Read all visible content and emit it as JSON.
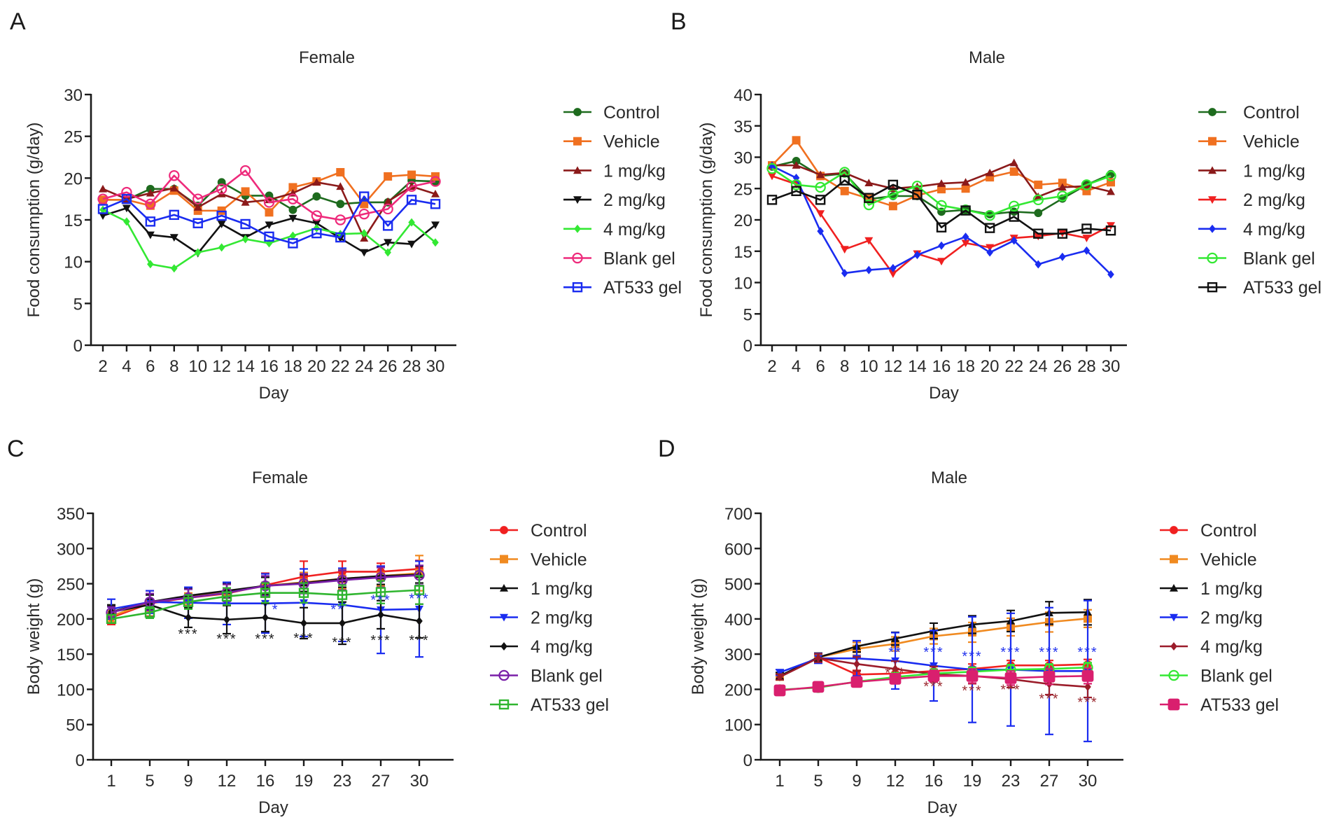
{
  "chart_data": [
    {
      "panel": "A",
      "type": "line",
      "title": "Female",
      "xlabel": "Day",
      "ylabel": "Food consumption (g/day)",
      "ylim": [
        0,
        30
      ],
      "yticks": [
        0,
        5,
        10,
        15,
        20,
        25,
        30
      ],
      "x": [
        2,
        4,
        6,
        8,
        10,
        12,
        14,
        16,
        18,
        20,
        22,
        24,
        26,
        28,
        30
      ],
      "grid": false,
      "legend": "right",
      "series": [
        {
          "name": "Control",
          "color": "#1e6b1e",
          "marker": "circle-filled",
          "values": [
            17.4,
            17.4,
            18.7,
            18.7,
            16.7,
            19.5,
            17.9,
            17.9,
            16.2,
            17.8,
            16.9,
            17.1,
            17.1,
            19.7,
            19.6
          ]
        },
        {
          "name": "Vehicle",
          "color": "#f07020",
          "marker": "square-filled",
          "values": [
            17.4,
            17.4,
            16.7,
            18.5,
            16.1,
            16.1,
            18.4,
            15.9,
            18.9,
            19.6,
            20.7,
            16.9,
            20.2,
            20.4,
            20.2
          ]
        },
        {
          "name": "1 mg/kg",
          "color": "#8b1a1a",
          "marker": "triangle-up",
          "values": [
            18.7,
            17.5,
            18.2,
            18.8,
            16.5,
            18.1,
            17.1,
            17.4,
            18.2,
            19.5,
            19.0,
            12.8,
            17.2,
            19.0,
            18.1
          ]
        },
        {
          "name": "2 mg/kg",
          "color": "#111111",
          "marker": "triangle-down",
          "values": [
            15.5,
            16.4,
            13.2,
            12.9,
            11.0,
            14.5,
            12.9,
            14.4,
            15.2,
            14.6,
            12.8,
            11.1,
            12.3,
            12.1,
            14.4
          ]
        },
        {
          "name": "4 mg/kg",
          "color": "#33e833",
          "marker": "diamond-filled",
          "values": [
            16.2,
            14.8,
            9.7,
            9.2,
            11.1,
            11.7,
            12.7,
            12.2,
            13.1,
            14.0,
            13.3,
            13.4,
            11.1,
            14.7,
            12.3
          ]
        },
        {
          "name": "Blank gel",
          "color": "#ee2a7b",
          "marker": "circle-open",
          "values": [
            17.5,
            18.3,
            16.9,
            20.3,
            17.5,
            18.7,
            20.9,
            17.1,
            17.5,
            15.5,
            15.0,
            15.7,
            16.3,
            19.0,
            19.6
          ]
        },
        {
          "name": "AT533 gel",
          "color": "#1a2cf0",
          "marker": "square-open",
          "values": [
            16.3,
            17.5,
            14.8,
            15.6,
            14.6,
            15.5,
            14.5,
            13.0,
            12.2,
            13.4,
            12.9,
            17.8,
            14.3,
            17.4,
            16.9
          ]
        }
      ],
      "annotations": []
    },
    {
      "panel": "B",
      "type": "line",
      "title": "Male",
      "xlabel": "Day",
      "ylabel": "Food consumption (g/day)",
      "ylim": [
        0,
        40
      ],
      "yticks": [
        0,
        5,
        10,
        15,
        20,
        25,
        30,
        35,
        40
      ],
      "x": [
        2,
        4,
        6,
        8,
        10,
        12,
        14,
        16,
        18,
        20,
        22,
        24,
        26,
        28,
        30
      ],
      "grid": false,
      "legend": "right",
      "series": [
        {
          "name": "Control",
          "color": "#1e6b1e",
          "marker": "circle-filled",
          "values": [
            28.5,
            29.4,
            27.0,
            27.4,
            23.3,
            23.8,
            23.8,
            21.3,
            21.6,
            20.9,
            21.3,
            21.1,
            23.4,
            25.6,
            27.3
          ]
        },
        {
          "name": "Vehicle",
          "color": "#f07020",
          "marker": "square-filled",
          "values": [
            28.7,
            32.7,
            27.0,
            24.6,
            23.4,
            22.2,
            23.9,
            24.9,
            25.0,
            26.8,
            27.7,
            25.6,
            25.9,
            24.6,
            26.0
          ]
        },
        {
          "name": "1 mg/kg",
          "color": "#8b1a1a",
          "marker": "triangle-up",
          "values": [
            28.7,
            28.7,
            27.2,
            27.5,
            25.9,
            25.0,
            25.3,
            25.8,
            26.0,
            27.5,
            29.1,
            23.7,
            25.2,
            25.4,
            24.5
          ]
        },
        {
          "name": "2 mg/kg",
          "color": "#f02020",
          "marker": "triangle-down",
          "values": [
            27.0,
            25.7,
            21.0,
            15.3,
            16.7,
            11.4,
            14.6,
            13.4,
            16.3,
            15.6,
            17.1,
            17.4,
            17.9,
            17.1,
            19.1
          ]
        },
        {
          "name": "4 mg/kg",
          "color": "#1a2cf0",
          "marker": "diamond-filled",
          "values": [
            28.6,
            26.7,
            18.2,
            11.5,
            12.0,
            12.3,
            14.4,
            15.9,
            17.3,
            14.8,
            16.7,
            12.9,
            14.1,
            15.1,
            11.3
          ]
        },
        {
          "name": "Blank gel",
          "color": "#33e833",
          "marker": "circle-open",
          "values": [
            28.2,
            25.6,
            25.2,
            27.6,
            22.4,
            24.1,
            25.4,
            22.3,
            21.6,
            20.7,
            22.2,
            23.2,
            23.8,
            25.6,
            27.0
          ]
        },
        {
          "name": "AT533 gel",
          "color": "#111111",
          "marker": "square-open",
          "values": [
            23.2,
            24.6,
            23.2,
            26.3,
            23.5,
            25.6,
            24.0,
            18.8,
            21.5,
            18.7,
            20.5,
            17.8,
            17.8,
            18.6,
            18.3
          ]
        }
      ],
      "annotations": []
    },
    {
      "panel": "C",
      "type": "line",
      "title": "Female",
      "xlabel": "Day",
      "ylabel": "Body weight (g)",
      "ylim": [
        0,
        350
      ],
      "yticks": [
        0,
        50,
        100,
        150,
        200,
        250,
        300,
        350
      ],
      "x": [
        1,
        5,
        9,
        12,
        16,
        19,
        23,
        27,
        30
      ],
      "grid": false,
      "legend": "right",
      "error_bars": true,
      "series": [
        {
          "name": "Control",
          "color": "#f02020",
          "marker": "circle-filled",
          "values": [
            202,
            222,
            230,
            236,
            248,
            260,
            267,
            267,
            271
          ],
          "err": [
            10,
            18,
            14,
            14,
            17,
            22,
            15,
            12,
            12
          ]
        },
        {
          "name": "Vehicle",
          "color": "#f08a20",
          "marker": "square-filled",
          "values": [
            204,
            223,
            232,
            237,
            247,
            252,
            257,
            261,
            265
          ],
          "err": [
            8,
            12,
            12,
            12,
            14,
            14,
            14,
            14,
            25
          ]
        },
        {
          "name": "1 mg/kg",
          "color": "#111111",
          "marker": "triangle-up",
          "values": [
            210,
            224,
            233,
            240,
            247,
            251,
            257,
            261,
            263
          ],
          "err": [
            10,
            10,
            10,
            10,
            12,
            12,
            12,
            12,
            12
          ]
        },
        {
          "name": "2 mg/kg",
          "color": "#1a2cf0",
          "marker": "triangle-down",
          "values": [
            214,
            224,
            223,
            222,
            222,
            223,
            220,
            213,
            214
          ],
          "err": [
            14,
            16,
            22,
            30,
            42,
            48,
            52,
            62,
            68
          ]
        },
        {
          "name": "4 mg/kg",
          "color": "#111111",
          "marker": "diamond-filled",
          "values": [
            210,
            220,
            202,
            199,
            202,
            194,
            194,
            206,
            197
          ],
          "err": [
            8,
            8,
            14,
            20,
            20,
            22,
            30,
            20,
            24
          ]
        },
        {
          "name": "Blank gel",
          "color": "#7a1fa8",
          "marker": "circle-open",
          "values": [
            209,
            224,
            230,
            237,
            247,
            250,
            255,
            259,
            262
          ],
          "err": [
            8,
            12,
            12,
            12,
            14,
            14,
            14,
            14,
            14
          ]
        },
        {
          "name": "AT533 gel",
          "color": "#2fb52f",
          "marker": "square-open",
          "values": [
            200,
            209,
            224,
            232,
            237,
            237,
            234,
            238,
            241
          ],
          "err": [
            6,
            8,
            10,
            12,
            14,
            14,
            14,
            16,
            20
          ]
        }
      ],
      "annotations": [
        {
          "x": 9,
          "y": 172,
          "text": "***",
          "color": "#222222"
        },
        {
          "x": 12,
          "y": 165,
          "text": "***",
          "color": "#222222"
        },
        {
          "x": 16,
          "y": 165,
          "text": "***",
          "color": "#222222"
        },
        {
          "x": 19,
          "y": 166,
          "text": "***",
          "color": "#222222"
        },
        {
          "x": 23,
          "y": 160,
          "text": "***",
          "color": "#222222"
        },
        {
          "x": 27,
          "y": 163,
          "text": "***",
          "color": "#222222"
        },
        {
          "x": 30,
          "y": 163,
          "text": "***",
          "color": "#222222"
        },
        {
          "x": 16.8,
          "y": 207,
          "text": "*",
          "color": "#2233ee"
        },
        {
          "x": 22.5,
          "y": 207,
          "text": "**",
          "color": "#2233ee"
        },
        {
          "x": 27,
          "y": 220,
          "text": "***",
          "color": "#2233ee"
        },
        {
          "x": 30,
          "y": 222,
          "text": "***",
          "color": "#2233ee"
        }
      ]
    },
    {
      "panel": "D",
      "type": "line",
      "title": "Male",
      "xlabel": "Day",
      "ylabel": "Body weight (g)",
      "ylim": [
        0,
        700
      ],
      "yticks": [
        0,
        100,
        200,
        300,
        400,
        500,
        600,
        700
      ],
      "x": [
        1,
        5,
        9,
        12,
        16,
        19,
        23,
        27,
        30
      ],
      "grid": false,
      "legend": "right",
      "error_bars": true,
      "series": [
        {
          "name": "Control",
          "color": "#f02020",
          "marker": "circle-filled",
          "values": [
            236,
            291,
            242,
            245,
            252,
            258,
            268,
            268,
            271
          ],
          "err": [
            8,
            10,
            12,
            14,
            14,
            14,
            14,
            14,
            14
          ]
        },
        {
          "name": "Vehicle",
          "color": "#f08a20",
          "marker": "square-filled",
          "values": [
            236,
            291,
            315,
            329,
            351,
            362,
            377,
            391,
            401
          ],
          "err": [
            8,
            10,
            18,
            20,
            22,
            28,
            25,
            28,
            25
          ]
        },
        {
          "name": "1 mg/kg",
          "color": "#111111",
          "marker": "triangle-up",
          "values": [
            238,
            291,
            322,
            344,
            366,
            384,
            394,
            417,
            419
          ],
          "err": [
            10,
            12,
            16,
            18,
            22,
            25,
            30,
            32,
            36
          ]
        },
        {
          "name": "2 mg/kg",
          "color": "#1a2cf0",
          "marker": "triangle-down",
          "values": [
            248,
            288,
            288,
            281,
            267,
            256,
            256,
            252,
            252
          ],
          "err": [
            8,
            14,
            50,
            80,
            100,
            150,
            160,
            180,
            200
          ]
        },
        {
          "name": "4 mg/kg",
          "color": "#9b1c2a",
          "marker": "diamond-filled",
          "values": [
            235,
            289,
            272,
            258,
            243,
            238,
            229,
            215,
            207
          ],
          "err": [
            8,
            12,
            20,
            22,
            22,
            22,
            24,
            30,
            30
          ]
        },
        {
          "name": "Blank gel",
          "color": "#33e833",
          "marker": "circle-open",
          "values": [
            199,
            205,
            222,
            235,
            245,
            250,
            256,
            258,
            262
          ],
          "err": [
            6,
            8,
            10,
            12,
            12,
            12,
            14,
            14,
            14
          ]
        },
        {
          "name": "AT533 gel",
          "color": "#d91f6e",
          "marker": "square-filled-large",
          "values": [
            197,
            207,
            221,
            230,
            238,
            238,
            232,
            236,
            238
          ],
          "err": [
            8,
            10,
            12,
            14,
            16,
            20,
            20,
            22,
            22
          ]
        }
      ],
      "annotations": [
        {
          "x": 12,
          "y": 292,
          "text": "**",
          "color": "#2233ee"
        },
        {
          "x": 16,
          "y": 292,
          "text": "***",
          "color": "#2233ee"
        },
        {
          "x": 19,
          "y": 280,
          "text": "***",
          "color": "#2233ee"
        },
        {
          "x": 23,
          "y": 292,
          "text": "***",
          "color": "#2233ee"
        },
        {
          "x": 27,
          "y": 292,
          "text": "***",
          "color": "#2233ee"
        },
        {
          "x": 30,
          "y": 292,
          "text": "***",
          "color": "#2233ee"
        },
        {
          "x": 12,
          "y": 234,
          "text": "***",
          "color": "#9b2a30"
        },
        {
          "x": 16,
          "y": 195,
          "text": "***",
          "color": "#9b2a30"
        },
        {
          "x": 19,
          "y": 183,
          "text": "***",
          "color": "#9b2a30"
        },
        {
          "x": 23,
          "y": 186,
          "text": "***",
          "color": "#9b2a30"
        },
        {
          "x": 27,
          "y": 160,
          "text": "***",
          "color": "#9b2a30"
        },
        {
          "x": 30,
          "y": 150,
          "text": "***",
          "color": "#9b2a30"
        }
      ]
    }
  ]
}
